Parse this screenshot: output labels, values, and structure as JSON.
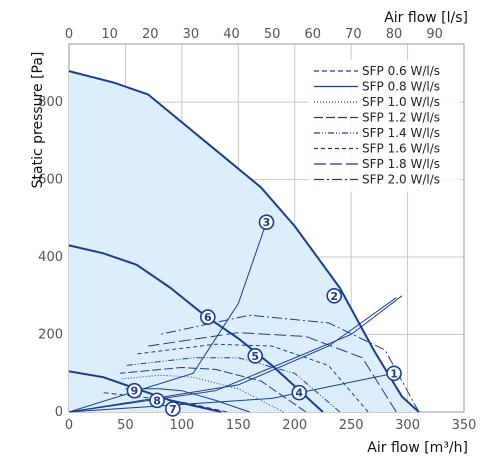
{
  "chart_data": {
    "type": "line",
    "xlabel_bottom": "Air flow [m³/h]",
    "xlabel_top": "Air flow [l/s]",
    "ylabel": "Static pressure [Pa]",
    "xlim": [
      0,
      350
    ],
    "ylim": [
      0,
      950
    ],
    "xticks_bottom": [
      0,
      50,
      100,
      150,
      200,
      250,
      300,
      350
    ],
    "xticks_top": [
      0,
      10,
      20,
      30,
      40,
      50,
      60,
      70,
      80,
      90
    ],
    "yticks": [
      0,
      200,
      400,
      600,
      800
    ],
    "colors": {
      "curve": "#1b3e8c",
      "fill": "#dceefb",
      "grid": "#c8c8c8",
      "marker_fill": "#ffffff"
    },
    "fan_curves": [
      {
        "points": [
          [
            0,
            880
          ],
          [
            40,
            850
          ],
          [
            70,
            820
          ],
          [
            120,
            700
          ],
          [
            170,
            580
          ],
          [
            200,
            480
          ],
          [
            240,
            320
          ],
          [
            270,
            160
          ],
          [
            295,
            40
          ],
          [
            310,
            0
          ]
        ]
      },
      {
        "points": [
          [
            0,
            430
          ],
          [
            30,
            410
          ],
          [
            60,
            380
          ],
          [
            90,
            320
          ],
          [
            120,
            250
          ],
          [
            150,
            190
          ],
          [
            180,
            120
          ],
          [
            210,
            40
          ],
          [
            225,
            0
          ]
        ]
      },
      {
        "points": [
          [
            0,
            105
          ],
          [
            30,
            90
          ],
          [
            60,
            60
          ],
          [
            90,
            30
          ],
          [
            120,
            10
          ],
          [
            135,
            0
          ]
        ]
      }
    ],
    "sfp_curves": [
      {
        "label": "SFP 0.6 W/l/s",
        "dash": "5,3",
        "points": [
          [
            140,
            0
          ],
          [
            110,
            20
          ],
          [
            90,
            30
          ],
          [
            60,
            40
          ],
          [
            30,
            50
          ]
        ]
      },
      {
        "label": "SFP 0.8 W/l/s",
        "dash": "",
        "points": [
          [
            160,
            0
          ],
          [
            130,
            30
          ],
          [
            100,
            55
          ],
          [
            80,
            60
          ],
          [
            50,
            60
          ]
        ]
      },
      {
        "label": "SFP 1.0 W/l/s",
        "dash": "1,2",
        "points": [
          [
            190,
            0
          ],
          [
            150,
            60
          ],
          [
            110,
            90
          ],
          [
            80,
            95
          ],
          [
            45,
            85
          ]
        ]
      },
      {
        "label": "SFP 1.2 W/l/s",
        "dash": "9,3",
        "points": [
          [
            210,
            0
          ],
          [
            170,
            80
          ],
          [
            130,
            110
          ],
          [
            100,
            115
          ],
          [
            45,
            100
          ]
        ]
      },
      {
        "label": "SFP 1.4 W/l/s",
        "dash": "6,2,1,2,1,2",
        "points": [
          [
            240,
            0
          ],
          [
            200,
            100
          ],
          [
            150,
            140
          ],
          [
            110,
            140
          ],
          [
            50,
            120
          ]
        ]
      },
      {
        "label": "SFP 1.6 W/l/s",
        "dash": "4,3",
        "points": [
          [
            265,
            0
          ],
          [
            230,
            120
          ],
          [
            180,
            170
          ],
          [
            130,
            175
          ],
          [
            60,
            150
          ]
        ]
      },
      {
        "label": "SFP 1.8 W/l/s",
        "dash": "12,4",
        "points": [
          [
            290,
            0
          ],
          [
            260,
            140
          ],
          [
            210,
            195
          ],
          [
            150,
            205
          ],
          [
            70,
            170
          ]
        ]
      },
      {
        "label": "SFP 2.0 W/l/s",
        "dash": "10,3,2,3",
        "points": [
          [
            310,
            0
          ],
          [
            280,
            160
          ],
          [
            230,
            230
          ],
          [
            160,
            250
          ],
          [
            80,
            200
          ]
        ]
      }
    ],
    "system_lines": [
      {
        "points": [
          [
            0,
            0
          ],
          [
            130,
            55
          ],
          [
            250,
            200
          ],
          [
            295,
            300
          ]
        ]
      },
      {
        "points": [
          [
            0,
            0
          ],
          [
            110,
            100
          ],
          [
            150,
            280
          ],
          [
            175,
            490
          ]
        ]
      },
      {
        "points": [
          [
            0,
            0
          ],
          [
            150,
            70
          ],
          [
            230,
            170
          ],
          [
            290,
            295
          ]
        ]
      },
      {
        "points": [
          [
            0,
            0
          ],
          [
            180,
            35
          ],
          [
            288,
            100
          ]
        ]
      }
    ],
    "markers": [
      {
        "label": "1",
        "x": 288,
        "y": 100
      },
      {
        "label": "2",
        "x": 235,
        "y": 300
      },
      {
        "label": "3",
        "x": 175,
        "y": 490
      },
      {
        "label": "4",
        "x": 204,
        "y": 50
      },
      {
        "label": "5",
        "x": 165,
        "y": 145
      },
      {
        "label": "6",
        "x": 123,
        "y": 245
      },
      {
        "label": "7",
        "x": 92,
        "y": 8
      },
      {
        "label": "8",
        "x": 78,
        "y": 30
      },
      {
        "label": "9",
        "x": 58,
        "y": 55
      }
    ]
  }
}
